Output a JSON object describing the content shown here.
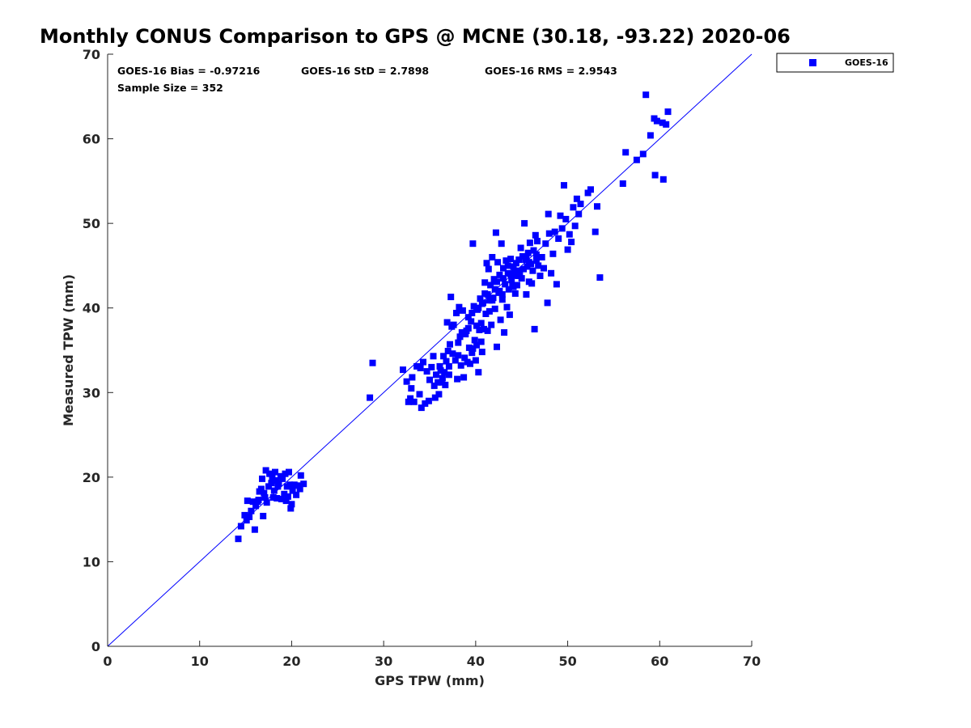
{
  "chart_data": {
    "type": "scatter",
    "title": "Monthly CONUS Comparison to GPS @ MCNE (30.18, -93.22) 2020-06",
    "xlabel": "GPS TPW (mm)",
    "ylabel": "Measured TPW (mm)",
    "xlim": [
      0,
      70
    ],
    "ylim": [
      0,
      70
    ],
    "xticks": [
      "0",
      "10",
      "20",
      "30",
      "40",
      "50",
      "60",
      "70"
    ],
    "yticks": [
      "0",
      "10",
      "20",
      "30",
      "40",
      "50",
      "60",
      "70"
    ],
    "grid": false,
    "legend_position": "outside-top-right",
    "reference_line": {
      "from": [
        0,
        0
      ],
      "to": [
        70,
        70
      ],
      "color": "#0000ff"
    },
    "stats": {
      "bias": "GOES-16 Bias = -0.97216",
      "std": "GOES-16 StD = 2.7898",
      "rms": "GOES-16 RMS = 2.9543",
      "sample": "Sample Size = 352"
    },
    "series": [
      {
        "name": "GOES-16",
        "color": "#0000ff",
        "marker": "square",
        "points": [
          [
            14.2,
            12.7
          ],
          [
            14.5,
            14.2
          ],
          [
            14.9,
            15.5
          ],
          [
            15.1,
            14.9
          ],
          [
            15.2,
            17.2
          ],
          [
            15.4,
            15.3
          ],
          [
            15.6,
            16.0
          ],
          [
            15.8,
            17.1
          ],
          [
            16.0,
            13.8
          ],
          [
            16.1,
            16.6
          ],
          [
            16.3,
            17.1
          ],
          [
            16.5,
            18.3
          ],
          [
            16.7,
            18.6
          ],
          [
            16.8,
            19.8
          ],
          [
            16.9,
            15.4
          ],
          [
            17.1,
            17.6
          ],
          [
            17.2,
            20.8
          ],
          [
            17.3,
            17.0
          ],
          [
            17.5,
            18.9
          ],
          [
            17.6,
            20.4
          ],
          [
            17.8,
            19.3
          ],
          [
            17.9,
            20.0
          ],
          [
            18.0,
            17.6
          ],
          [
            18.1,
            18.4
          ],
          [
            18.2,
            20.6
          ],
          [
            18.4,
            17.5
          ],
          [
            18.5,
            18.9
          ],
          [
            18.6,
            19.3
          ],
          [
            18.8,
            20.1
          ],
          [
            18.9,
            17.4
          ],
          [
            19.0,
            19.8
          ],
          [
            19.2,
            18.0
          ],
          [
            19.3,
            20.4
          ],
          [
            19.4,
            17.2
          ],
          [
            19.5,
            18.9
          ],
          [
            19.7,
            20.6
          ],
          [
            19.8,
            19.1
          ],
          [
            19.9,
            16.3
          ],
          [
            20.0,
            16.8
          ],
          [
            20.1,
            18.4
          ],
          [
            20.3,
            19.1
          ],
          [
            20.5,
            17.9
          ],
          [
            20.7,
            19.0
          ],
          [
            20.9,
            18.6
          ],
          [
            21.0,
            20.2
          ],
          [
            21.3,
            19.2
          ],
          [
            19.6,
            17.7
          ],
          [
            18.3,
            19.6
          ],
          [
            17.0,
            18.1
          ],
          [
            16.4,
            17.3
          ],
          [
            28.5,
            29.4
          ],
          [
            28.8,
            33.5
          ],
          [
            32.1,
            32.7
          ],
          [
            32.5,
            31.3
          ],
          [
            32.7,
            28.9
          ],
          [
            32.9,
            29.3
          ],
          [
            33.0,
            30.5
          ],
          [
            33.1,
            31.8
          ],
          [
            33.3,
            28.9
          ],
          [
            33.6,
            33.1
          ],
          [
            33.9,
            29.8
          ],
          [
            34.0,
            32.9
          ],
          [
            34.1,
            28.2
          ],
          [
            34.3,
            33.6
          ],
          [
            34.5,
            28.7
          ],
          [
            34.7,
            32.5
          ],
          [
            34.9,
            29.0
          ],
          [
            35.0,
            31.5
          ],
          [
            35.2,
            33.0
          ],
          [
            35.4,
            34.3
          ],
          [
            35.6,
            29.4
          ],
          [
            35.7,
            32.1
          ],
          [
            35.9,
            31.2
          ],
          [
            36.0,
            29.8
          ],
          [
            36.1,
            33.1
          ],
          [
            36.2,
            32.6
          ],
          [
            36.4,
            31.7
          ],
          [
            36.5,
            34.3
          ],
          [
            36.6,
            32.4
          ],
          [
            36.7,
            30.9
          ],
          [
            36.8,
            33.7
          ],
          [
            36.9,
            38.3
          ],
          [
            37.0,
            34.9
          ],
          [
            37.1,
            32.1
          ],
          [
            37.2,
            35.7
          ],
          [
            37.3,
            41.3
          ],
          [
            37.4,
            37.8
          ],
          [
            37.5,
            34.6
          ],
          [
            37.6,
            38.0
          ],
          [
            37.8,
            33.8
          ],
          [
            37.9,
            39.4
          ],
          [
            38.0,
            31.6
          ],
          [
            38.1,
            35.9
          ],
          [
            38.2,
            40.1
          ],
          [
            38.3,
            36.6
          ],
          [
            38.4,
            33.2
          ],
          [
            38.6,
            39.7
          ],
          [
            38.7,
            31.8
          ],
          [
            38.8,
            34.1
          ],
          [
            38.9,
            36.9
          ],
          [
            39.0,
            37.3
          ],
          [
            39.1,
            33.6
          ],
          [
            39.2,
            38.9
          ],
          [
            39.3,
            35.3
          ],
          [
            39.4,
            33.4
          ],
          [
            39.5,
            38.4
          ],
          [
            39.6,
            34.7
          ],
          [
            39.7,
            47.6
          ],
          [
            39.8,
            40.2
          ],
          [
            39.9,
            36.2
          ],
          [
            40.0,
            33.8
          ],
          [
            40.1,
            35.6
          ],
          [
            40.2,
            39.8
          ],
          [
            40.3,
            32.4
          ],
          [
            40.4,
            37.4
          ],
          [
            40.5,
            41.1
          ],
          [
            40.6,
            38.2
          ],
          [
            40.7,
            34.8
          ],
          [
            40.8,
            40.6
          ],
          [
            40.9,
            37.5
          ],
          [
            41.0,
            43.0
          ],
          [
            41.1,
            39.3
          ],
          [
            41.2,
            45.3
          ],
          [
            41.3,
            37.3
          ],
          [
            41.4,
            44.6
          ],
          [
            41.5,
            40.9
          ],
          [
            41.6,
            42.7
          ],
          [
            41.7,
            38.0
          ],
          [
            41.8,
            46.0
          ],
          [
            41.9,
            41.2
          ],
          [
            42.0,
            43.4
          ],
          [
            42.1,
            39.9
          ],
          [
            42.2,
            48.9
          ],
          [
            42.3,
            35.4
          ],
          [
            42.4,
            45.4
          ],
          [
            42.5,
            41.8
          ],
          [
            42.6,
            43.9
          ],
          [
            42.7,
            38.6
          ],
          [
            42.8,
            47.6
          ],
          [
            42.9,
            41.6
          ],
          [
            43.0,
            44.7
          ],
          [
            43.1,
            37.1
          ],
          [
            43.2,
            42.8
          ],
          [
            43.3,
            45.6
          ],
          [
            43.4,
            40.1
          ],
          [
            43.5,
            44.1
          ],
          [
            43.6,
            42.2
          ],
          [
            43.7,
            39.2
          ],
          [
            43.8,
            45.8
          ],
          [
            43.9,
            43.3
          ],
          [
            44.0,
            42.6
          ],
          [
            44.1,
            44.9
          ],
          [
            44.2,
            43.9
          ],
          [
            44.3,
            41.7
          ],
          [
            44.4,
            45.3
          ],
          [
            44.5,
            42.7
          ],
          [
            44.6,
            43.8
          ],
          [
            44.7,
            45.7
          ],
          [
            44.8,
            44.2
          ],
          [
            44.9,
            47.1
          ],
          [
            45.0,
            43.5
          ],
          [
            45.1,
            46.1
          ],
          [
            45.2,
            44.6
          ],
          [
            45.3,
            50.0
          ],
          [
            45.4,
            45.7
          ],
          [
            45.5,
            41.6
          ],
          [
            45.6,
            44.9
          ],
          [
            45.7,
            46.5
          ],
          [
            45.8,
            43.1
          ],
          [
            45.9,
            47.7
          ],
          [
            46.0,
            45.2
          ],
          [
            46.1,
            42.9
          ],
          [
            46.2,
            44.4
          ],
          [
            46.3,
            46.8
          ],
          [
            46.4,
            37.5
          ],
          [
            46.5,
            48.6
          ],
          [
            46.6,
            45.6
          ],
          [
            46.7,
            47.9
          ],
          [
            46.8,
            45.0
          ],
          [
            47.0,
            43.8
          ],
          [
            47.2,
            46.0
          ],
          [
            47.4,
            44.7
          ],
          [
            47.6,
            47.6
          ],
          [
            47.8,
            40.6
          ],
          [
            47.9,
            51.1
          ],
          [
            48.0,
            48.8
          ],
          [
            48.2,
            44.1
          ],
          [
            48.4,
            46.4
          ],
          [
            48.6,
            49.0
          ],
          [
            48.8,
            42.8
          ],
          [
            49.0,
            48.2
          ],
          [
            49.2,
            50.9
          ],
          [
            49.4,
            49.4
          ],
          [
            49.6,
            54.5
          ],
          [
            49.8,
            50.5
          ],
          [
            50.0,
            46.9
          ],
          [
            50.2,
            48.7
          ],
          [
            50.4,
            47.8
          ],
          [
            50.6,
            51.9
          ],
          [
            50.8,
            49.7
          ],
          [
            51.0,
            52.9
          ],
          [
            51.2,
            51.1
          ],
          [
            51.4,
            52.3
          ],
          [
            52.2,
            53.6
          ],
          [
            52.5,
            54.0
          ],
          [
            53.0,
            49.0
          ],
          [
            53.2,
            52.0
          ],
          [
            53.5,
            43.6
          ],
          [
            56.0,
            54.7
          ],
          [
            56.3,
            58.4
          ],
          [
            57.5,
            57.5
          ],
          [
            58.2,
            58.2
          ],
          [
            58.5,
            65.2
          ],
          [
            59.0,
            60.4
          ],
          [
            59.4,
            62.4
          ],
          [
            59.5,
            55.7
          ],
          [
            59.7,
            62.1
          ],
          [
            60.3,
            61.9
          ],
          [
            60.4,
            55.2
          ],
          [
            60.7,
            61.7
          ],
          [
            60.9,
            63.2
          ],
          [
            41.3,
            41.6
          ],
          [
            42.1,
            42.2
          ],
          [
            43.0,
            43.5
          ],
          [
            40.7,
            40.5
          ],
          [
            41.8,
            40.9
          ],
          [
            42.6,
            42.0
          ],
          [
            44.2,
            44.3
          ],
          [
            43.5,
            45.0
          ],
          [
            45.5,
            45.8
          ],
          [
            40.3,
            40.0
          ],
          [
            39.6,
            39.4
          ],
          [
            41.0,
            41.7
          ],
          [
            42.3,
            43.1
          ],
          [
            43.8,
            44.0
          ],
          [
            44.6,
            44.4
          ],
          [
            45.8,
            45.4
          ],
          [
            46.6,
            46.3
          ],
          [
            39.2,
            37.6
          ],
          [
            38.5,
            37.1
          ],
          [
            40.1,
            37.9
          ],
          [
            41.5,
            39.6
          ],
          [
            42.9,
            41.0
          ],
          [
            44.1,
            42.5
          ],
          [
            39.7,
            35.2
          ],
          [
            40.6,
            36.0
          ],
          [
            38.1,
            34.4
          ],
          [
            37.1,
            33.1
          ],
          [
            36.3,
            31.2
          ],
          [
            35.5,
            30.8
          ]
        ]
      }
    ]
  }
}
